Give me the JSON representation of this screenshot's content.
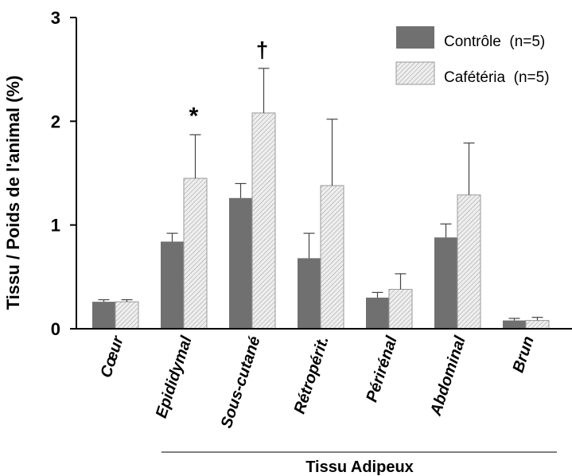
{
  "chart_data": {
    "type": "bar",
    "categories": [
      "Cœur",
      "Epididymal",
      "Sous-cutané",
      "Rétropérit.",
      "Périrénal",
      "Abdominal",
      "Brun"
    ],
    "series": [
      {
        "name": "Contrôle  (n=5)",
        "color": "#707070",
        "pattern": "solid",
        "values": [
          0.26,
          0.84,
          1.26,
          0.68,
          0.3,
          0.88,
          0.08
        ],
        "errors": [
          0.02,
          0.08,
          0.14,
          0.24,
          0.05,
          0.13,
          0.02
        ]
      },
      {
        "name": "Cafétéria  (n=5)",
        "color": "#c8c8c8",
        "pattern": "hatched",
        "values": [
          0.26,
          1.45,
          2.08,
          1.38,
          0.38,
          1.29,
          0.08
        ],
        "errors": [
          0.02,
          0.42,
          0.43,
          0.64,
          0.15,
          0.5,
          0.03
        ]
      }
    ],
    "annotations": [
      {
        "category": "Epididymal",
        "series": "Cafétéria  (n=5)",
        "text": "*"
      },
      {
        "category": "Sous-cutané",
        "series": "Cafétéria  (n=5)",
        "text": "†"
      }
    ],
    "ylabel": "Tissu / Poids de l'animal (%)",
    "group_label": "Tissu Adipeux",
    "group_categories": [
      "Epididymal",
      "Sous-cutané",
      "Rétropérit.",
      "Périrénal",
      "Abdominal",
      "Brun"
    ],
    "ylim": [
      0,
      3
    ],
    "yticks": [
      "0",
      "1",
      "2",
      "3"
    ],
    "legend_position": "top-right",
    "grid": false
  }
}
